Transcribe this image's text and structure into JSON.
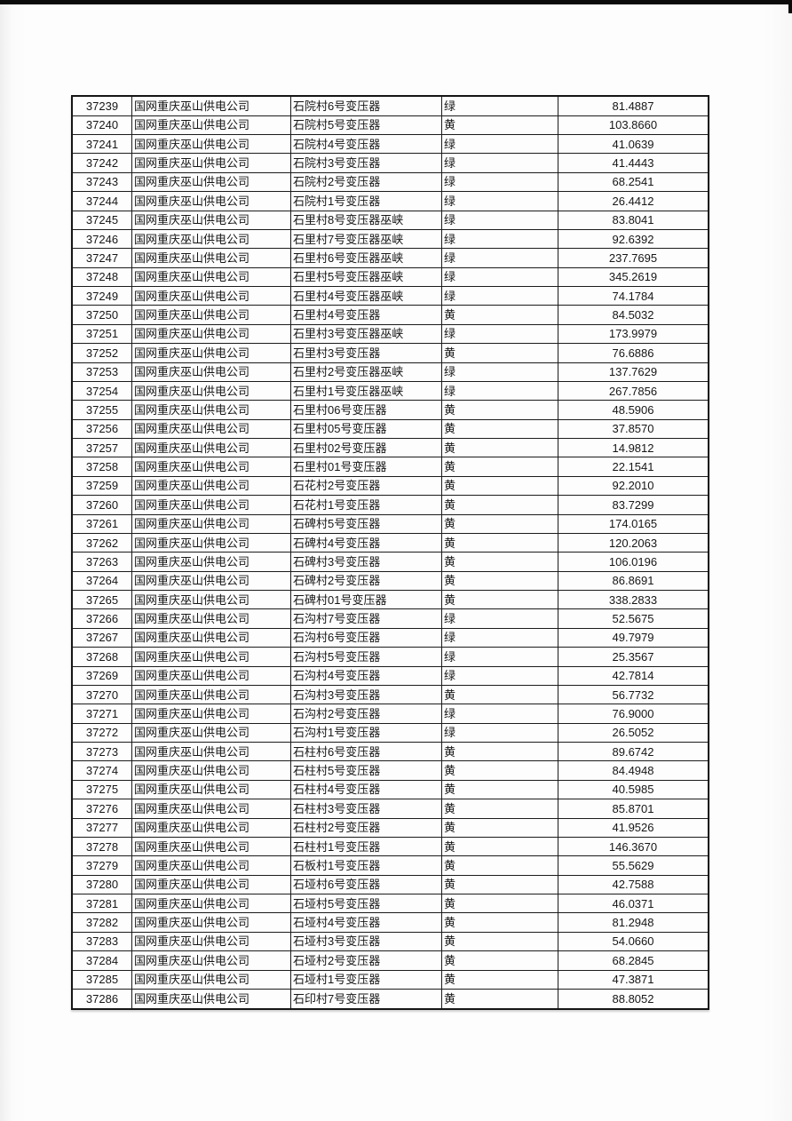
{
  "page": {
    "background_color": "#fdfdfd",
    "top_bar_color": "#0b0b0b",
    "table_border_color": "#1b1b1b",
    "text_color": "#161616"
  },
  "table": {
    "status_values_seen": [
      "绿",
      "黄"
    ],
    "rows": [
      {
        "id": "37239",
        "company": "国网重庆巫山供电公司",
        "transformer": "石院村6号变压器",
        "status": "绿",
        "value": "81.4887"
      },
      {
        "id": "37240",
        "company": "国网重庆巫山供电公司",
        "transformer": "石院村5号变压器",
        "status": "黄",
        "value": "103.8660"
      },
      {
        "id": "37241",
        "company": "国网重庆巫山供电公司",
        "transformer": "石院村4号变压器",
        "status": "绿",
        "value": "41.0639"
      },
      {
        "id": "37242",
        "company": "国网重庆巫山供电公司",
        "transformer": "石院村3号变压器",
        "status": "绿",
        "value": "41.4443"
      },
      {
        "id": "37243",
        "company": "国网重庆巫山供电公司",
        "transformer": "石院村2号变压器",
        "status": "绿",
        "value": "68.2541"
      },
      {
        "id": "37244",
        "company": "国网重庆巫山供电公司",
        "transformer": "石院村1号变压器",
        "status": "绿",
        "value": "26.4412"
      },
      {
        "id": "37245",
        "company": "国网重庆巫山供电公司",
        "transformer": "石里村8号变压器巫峡",
        "status": "绿",
        "value": "83.8041"
      },
      {
        "id": "37246",
        "company": "国网重庆巫山供电公司",
        "transformer": "石里村7号变压器巫峡",
        "status": "绿",
        "value": "92.6392"
      },
      {
        "id": "37247",
        "company": "国网重庆巫山供电公司",
        "transformer": "石里村6号变压器巫峡",
        "status": "绿",
        "value": "237.7695"
      },
      {
        "id": "37248",
        "company": "国网重庆巫山供电公司",
        "transformer": "石里村5号变压器巫峡",
        "status": "绿",
        "value": "345.2619"
      },
      {
        "id": "37249",
        "company": "国网重庆巫山供电公司",
        "transformer": "石里村4号变压器巫峡",
        "status": "绿",
        "value": "74.1784"
      },
      {
        "id": "37250",
        "company": "国网重庆巫山供电公司",
        "transformer": "石里村4号变压器",
        "status": "黄",
        "value": "84.5032"
      },
      {
        "id": "37251",
        "company": "国网重庆巫山供电公司",
        "transformer": "石里村3号变压器巫峡",
        "status": "绿",
        "value": "173.9979"
      },
      {
        "id": "37252",
        "company": "国网重庆巫山供电公司",
        "transformer": "石里村3号变压器",
        "status": "黄",
        "value": "76.6886"
      },
      {
        "id": "37253",
        "company": "国网重庆巫山供电公司",
        "transformer": "石里村2号变压器巫峡",
        "status": "绿",
        "value": "137.7629"
      },
      {
        "id": "37254",
        "company": "国网重庆巫山供电公司",
        "transformer": "石里村1号变压器巫峡",
        "status": "绿",
        "value": "267.7856"
      },
      {
        "id": "37255",
        "company": "国网重庆巫山供电公司",
        "transformer": "石里村06号变压器",
        "status": "黄",
        "value": "48.5906"
      },
      {
        "id": "37256",
        "company": "国网重庆巫山供电公司",
        "transformer": "石里村05号变压器",
        "status": "黄",
        "value": "37.8570"
      },
      {
        "id": "37257",
        "company": "国网重庆巫山供电公司",
        "transformer": "石里村02号变压器",
        "status": "黄",
        "value": "14.9812"
      },
      {
        "id": "37258",
        "company": "国网重庆巫山供电公司",
        "transformer": "石里村01号变压器",
        "status": "黄",
        "value": "22.1541"
      },
      {
        "id": "37259",
        "company": "国网重庆巫山供电公司",
        "transformer": "石花村2号变压器",
        "status": "黄",
        "value": "92.2010"
      },
      {
        "id": "37260",
        "company": "国网重庆巫山供电公司",
        "transformer": "石花村1号变压器",
        "status": "黄",
        "value": "83.7299"
      },
      {
        "id": "37261",
        "company": "国网重庆巫山供电公司",
        "transformer": "石碑村5号变压器",
        "status": "黄",
        "value": "174.0165"
      },
      {
        "id": "37262",
        "company": "国网重庆巫山供电公司",
        "transformer": "石碑村4号变压器",
        "status": "黄",
        "value": "120.2063"
      },
      {
        "id": "37263",
        "company": "国网重庆巫山供电公司",
        "transformer": "石碑村3号变压器",
        "status": "黄",
        "value": "106.0196"
      },
      {
        "id": "37264",
        "company": "国网重庆巫山供电公司",
        "transformer": "石碑村2号变压器",
        "status": "黄",
        "value": "86.8691"
      },
      {
        "id": "37265",
        "company": "国网重庆巫山供电公司",
        "transformer": "石碑村01号变压器",
        "status": "黄",
        "value": "338.2833"
      },
      {
        "id": "37266",
        "company": "国网重庆巫山供电公司",
        "transformer": "石沟村7号变压器",
        "status": "绿",
        "value": "52.5675"
      },
      {
        "id": "37267",
        "company": "国网重庆巫山供电公司",
        "transformer": "石沟村6号变压器",
        "status": "绿",
        "value": "49.7979"
      },
      {
        "id": "37268",
        "company": "国网重庆巫山供电公司",
        "transformer": "石沟村5号变压器",
        "status": "绿",
        "value": "25.3567"
      },
      {
        "id": "37269",
        "company": "国网重庆巫山供电公司",
        "transformer": "石沟村4号变压器",
        "status": "绿",
        "value": "42.7814"
      },
      {
        "id": "37270",
        "company": "国网重庆巫山供电公司",
        "transformer": "石沟村3号变压器",
        "status": "黄",
        "value": "56.7732"
      },
      {
        "id": "37271",
        "company": "国网重庆巫山供电公司",
        "transformer": "石沟村2号变压器",
        "status": "绿",
        "value": "76.9000"
      },
      {
        "id": "37272",
        "company": "国网重庆巫山供电公司",
        "transformer": "石沟村1号变压器",
        "status": "绿",
        "value": "26.5052"
      },
      {
        "id": "37273",
        "company": "国网重庆巫山供电公司",
        "transformer": "石柱村6号变压器",
        "status": "黄",
        "value": "89.6742"
      },
      {
        "id": "37274",
        "company": "国网重庆巫山供电公司",
        "transformer": "石柱村5号变压器",
        "status": "黄",
        "value": "84.4948"
      },
      {
        "id": "37275",
        "company": "国网重庆巫山供电公司",
        "transformer": "石柱村4号变压器",
        "status": "黄",
        "value": "40.5985"
      },
      {
        "id": "37276",
        "company": "国网重庆巫山供电公司",
        "transformer": "石柱村3号变压器",
        "status": "黄",
        "value": "85.8701"
      },
      {
        "id": "37277",
        "company": "国网重庆巫山供电公司",
        "transformer": "石柱村2号变压器",
        "status": "黄",
        "value": "41.9526"
      },
      {
        "id": "37278",
        "company": "国网重庆巫山供电公司",
        "transformer": "石柱村1号变压器",
        "status": "黄",
        "value": "146.3670"
      },
      {
        "id": "37279",
        "company": "国网重庆巫山供电公司",
        "transformer": "石板村1号变压器",
        "status": "黄",
        "value": "55.5629"
      },
      {
        "id": "37280",
        "company": "国网重庆巫山供电公司",
        "transformer": "石垭村6号变压器",
        "status": "黄",
        "value": "42.7588"
      },
      {
        "id": "37281",
        "company": "国网重庆巫山供电公司",
        "transformer": "石垭村5号变压器",
        "status": "黄",
        "value": "46.0371"
      },
      {
        "id": "37282",
        "company": "国网重庆巫山供电公司",
        "transformer": "石垭村4号变压器",
        "status": "黄",
        "value": "81.2948"
      },
      {
        "id": "37283",
        "company": "国网重庆巫山供电公司",
        "transformer": "石垭村3号变压器",
        "status": "黄",
        "value": "54.0660"
      },
      {
        "id": "37284",
        "company": "国网重庆巫山供电公司",
        "transformer": "石垭村2号变压器",
        "status": "黄",
        "value": "68.2845"
      },
      {
        "id": "37285",
        "company": "国网重庆巫山供电公司",
        "transformer": "石垭村1号变压器",
        "status": "黄",
        "value": "47.3871"
      },
      {
        "id": "37286",
        "company": "国网重庆巫山供电公司",
        "transformer": "石印村7号变压器",
        "status": "黄",
        "value": "88.8052"
      }
    ]
  }
}
